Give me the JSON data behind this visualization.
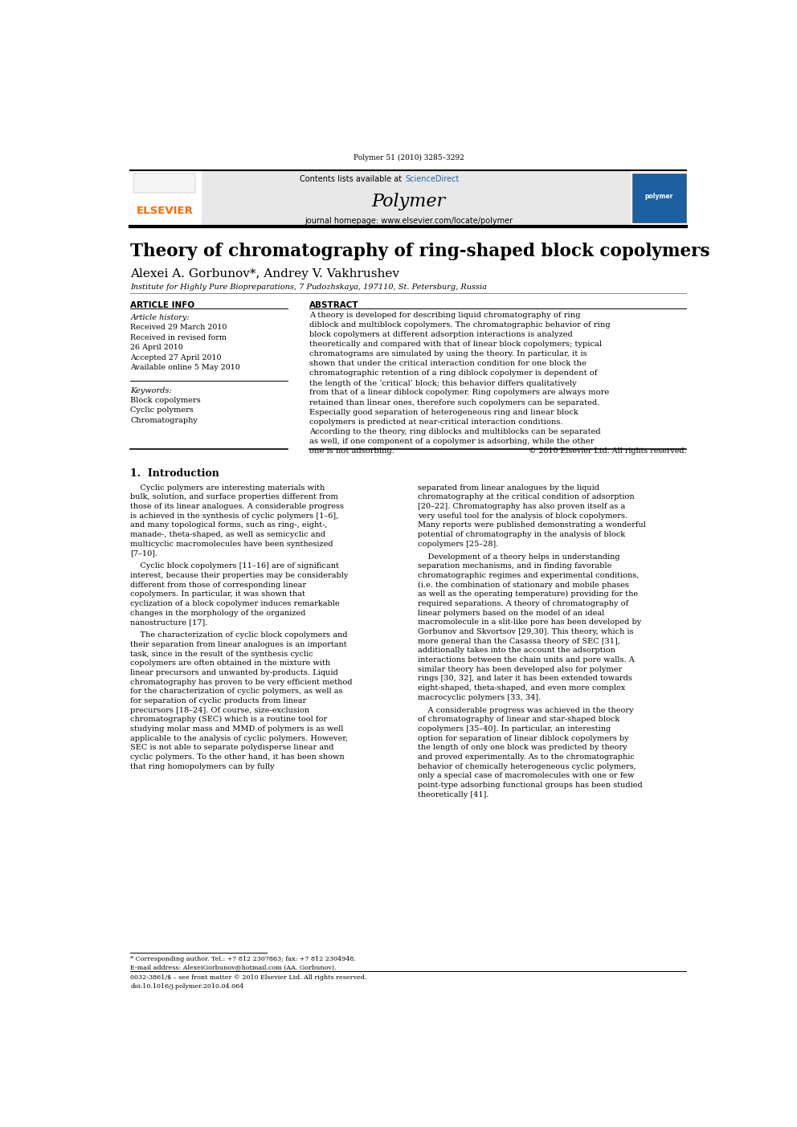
{
  "page_width": 9.92,
  "page_height": 14.03,
  "bg_color": "#ffffff",
  "journal_ref": "Polymer 51 (2010) 3285–3292",
  "header_bg": "#e8e8e8",
  "header_journal_name": "Polymer",
  "header_contents_prefix": "Contents lists available at ",
  "header_sciencedirect": "ScienceDirect",
  "header_sciencedirect_color": "#1a6aab",
  "header_homepage": "journal homepage: www.elsevier.com/locate/polymer",
  "elsevier_color": "#ff6600",
  "elsevier_text": "ELSEVIER",
  "article_title": "Theory of chromatography of ring-shaped block copolymers",
  "authors": "Alexei A. Gorbunov*, Andrey V. Vakhrushev",
  "affiliation": "Institute for Highly Pure Biopreparations, 7 Pudozhskaya, 197110, St. Petersburg, Russia",
  "section_article_info": "ARTICLE INFO",
  "section_abstract": "ABSTRACT",
  "article_history_label": "Article history:",
  "history_items": [
    "Received 29 March 2010",
    "Received in revised form",
    "26 April 2010",
    "Accepted 27 April 2010",
    "Available online 5 May 2010"
  ],
  "keywords_label": "Keywords:",
  "keywords": [
    "Block copolymers",
    "Cyclic polymers",
    "Chromatography"
  ],
  "abstract_text": "A theory is developed for describing liquid chromatography of ring diblock and multiblock copolymers. The chromatographic behavior of ring block copolymers at different adsorption interactions is analyzed theoretically and compared with that of linear block copolymers; typical chromatograms are simulated by using the theory. In particular, it is shown that under the critical interaction condition for one block the chromatographic retention of a ring diblock copolymer is dependent of the length of the ‘critical’ block; this behavior differs qualitatively from that of a linear diblock copolymer. Ring copolymers are always more retained than linear ones, therefore such copolymers can be separated. Especially good separation of heterogeneous ring and linear block copolymers is predicted at near-critical interaction conditions. According to the theory, ring diblocks and multiblocks can be separated as well, if one component of a copolymer is adsorbing, while the other one is not adsorbing.",
  "copyright": "© 2010 Elsevier Ltd. All rights reserved.",
  "intro_heading": "1.  Introduction",
  "intro_left_paragraphs": [
    "    Cyclic polymers are interesting materials with bulk, solution, and surface properties different from those of its linear analogues. A considerable progress is achieved in the synthesis of cyclic polymers [1–6], and many topological forms, such as ring-, eight-, manade-, theta-shaped, as well as semicyclic and multicyclic macromolecules have been synthesized [7–10].",
    "    Cyclic block copolymers [11–16] are of significant interest, because their properties may be considerably different from those of corresponding linear copolymers. In particular, it was shown that cyclization of a block copolymer induces remarkable changes in the morphology of the organized nanostructure [17].",
    "    The characterization of cyclic block copolymers and their separation from linear analogues is an important task, since in the result of the synthesis cyclic copolymers are often obtained in the mixture with linear precursors and unwanted by-products. Liquid chromatography has proven to be very efficient method for the characterization of cyclic polymers, as well as for separation of cyclic products from linear precursors [18–24]. Of course, size-exclusion chromatography (SEC) which is a routine tool for studying molar mass and MMD of polymers is as well applicable to the analysis of cyclic polymers. However, SEC is not able to separate polydisperse linear and cyclic polymers. To the other hand, it has been shown that ring homopolymers can by fully"
  ],
  "intro_right_paragraphs": [
    "separated from linear analogues by the liquid chromatography at the critical condition of adsorption [20–22]. Chromatography has also proven itself as a very useful tool for the analysis of block copolymers. Many reports were published demonstrating a wonderful potential of chromatography in the analysis of block copolymers [25–28].",
    "    Development of a theory helps in understanding separation mechanisms, and in finding favorable chromatographic regimes and experimental conditions, (i.e. the combination of stationary and mobile phases as well as the operating temperature) providing for the required separations. A theory of chromatography of linear polymers based on the model of an ideal macromolecule in a slit-like pore has been developed by Gorbunov and Skvortsov [29,30]. This theory, which is more general than the Casassa theory of SEC [31], additionally takes into the account the adsorption interactions between the chain units and pore walls. A similar theory has been developed also for polymer rings [30, 32], and later it has been extended towards eight-shaped, theta-shaped, and even more complex macrocyclic polymers [33, 34].",
    "    A considerable progress was achieved in the theory of chromatography of linear and star-shaped block copolymers [35–40]. In particular, an interesting option for separation of linear diblock copolymers by the length of only one block was predicted by theory and proved experimentally. As to the chromatographic behavior of chemically heterogeneous cyclic polymers, only a special case of macromolecules with one or few point-type adsorbing functional groups has been studied theoretically [41]."
  ],
  "footer_note": "* Corresponding author. Tel.: +7 812 2307863; fax: +7 812 2304948.",
  "footer_email": "E-mail address: AlexeiGorbunov@hotmail.com (AA. Gorbunov).",
  "footer_ref": "0032-3861/$ – see front matter © 2010 Elsevier Ltd. All rights reserved.",
  "footer_doi": "doi:10.1016/j.polymer.2010.04.064"
}
